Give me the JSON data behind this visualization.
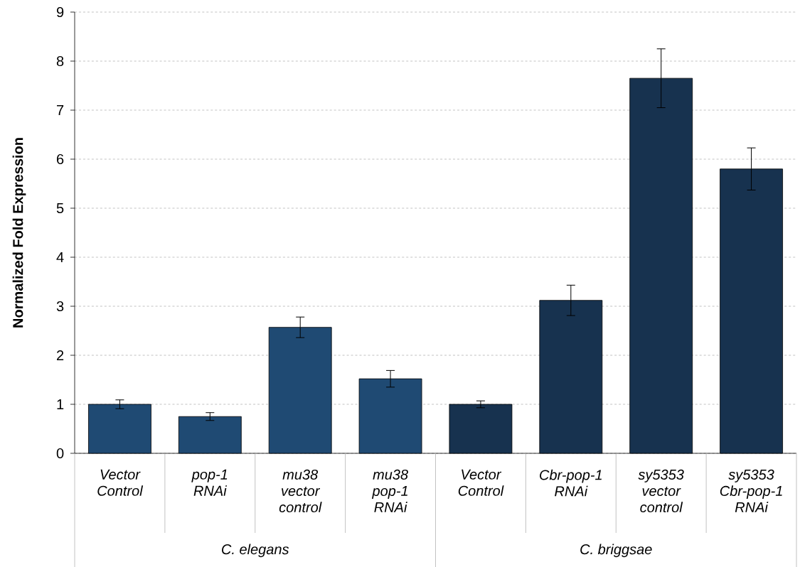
{
  "chart_data": {
    "type": "bar",
    "ylabel": "Normalized Fold Expression",
    "categories": [
      "Vector Control",
      "pop-1 RNAi",
      "mu38 vector control",
      "mu38 pop-1 RNAi",
      "Vector Control",
      "Cbr-pop-1 RNAi",
      "sy5353 vector control",
      "sy5353 Cbr-pop-1 RNAi"
    ],
    "values": [
      1.0,
      0.75,
      2.57,
      1.52,
      1.0,
      3.12,
      7.65,
      5.8
    ],
    "errors": [
      0.09,
      0.08,
      0.21,
      0.17,
      0.07,
      0.31,
      0.6,
      0.43
    ],
    "colors": [
      "#1f4a73",
      "#1f4a73",
      "#1f4a73",
      "#1f4a73",
      "#17324f",
      "#17324f",
      "#17324f",
      "#17324f"
    ],
    "annotations": [
      "C. elegans",
      "C. briggsae"
    ],
    "ylim": [
      0,
      9
    ],
    "yticks": [
      0,
      1,
      2,
      3,
      4,
      5,
      6,
      7,
      8,
      9
    ],
    "grid": "y"
  }
}
